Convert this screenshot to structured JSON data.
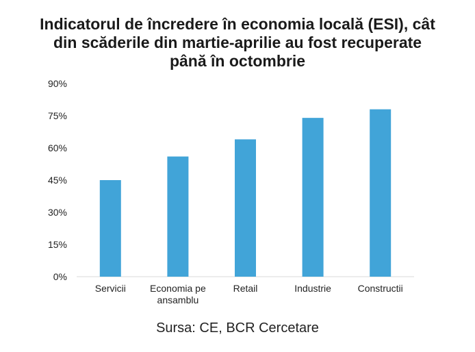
{
  "title_lines": [
    "Indicatorul de încredere în economia locală (ESI), cât",
    "din scăderile din martie-aprilie au fost recuperate",
    "până în octombrie"
  ],
  "source": "Sursa: CE, BCR Cercetare",
  "chart_data": {
    "type": "bar",
    "title": "Indicatorul de încredere în economia locală (ESI), cât din scăderile din martie-aprilie au fost recuperate până în octombrie",
    "categories": [
      "Servicii",
      "Economia pe ansamblu",
      "Retail",
      "Industrie",
      "Constructii"
    ],
    "category_lines": [
      [
        "Servicii"
      ],
      [
        "Economia pe",
        "ansamblu"
      ],
      [
        "Retail"
      ],
      [
        "Industrie"
      ],
      [
        "Constructii"
      ]
    ],
    "values": [
      45,
      56,
      64,
      74,
      78
    ],
    "unit": "%",
    "ylim": [
      0,
      90
    ],
    "yticks": [
      0,
      15,
      30,
      45,
      60,
      75,
      90
    ],
    "ytick_labels": [
      "0%",
      "15%",
      "30%",
      "45%",
      "60%",
      "75%",
      "90%"
    ],
    "xlabel": "",
    "ylabel": "",
    "grid": false,
    "legend": "none",
    "bar_color": "#41A4D8"
  }
}
